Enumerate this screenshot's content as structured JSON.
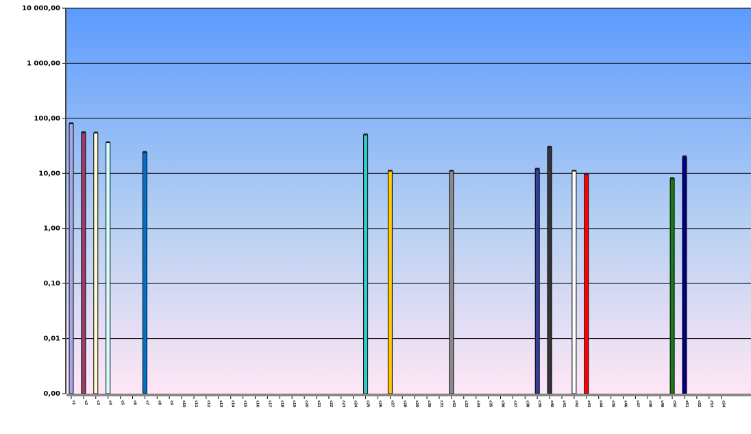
{
  "chart_data": {
    "type": "bar",
    "scale": "log",
    "grid": true,
    "legend": "none",
    "title": "",
    "xlabel": "",
    "ylabel": "",
    "ylim": [
      0.001,
      10000
    ],
    "yticks": [
      0.001,
      0.01,
      0.1,
      1,
      10,
      100,
      1000,
      10000
    ],
    "ytick_labels": [
      "0,00",
      "0,01",
      "0,10",
      "1,00",
      "10,00",
      "100,00",
      "1 000,00",
      "10 000,00"
    ],
    "background_gradient": [
      "#5c9bff",
      "#ffe6f5"
    ],
    "categories": [
      "c1",
      "c2",
      "c3",
      "c4",
      "c5",
      "c6",
      "c7",
      "c8",
      "c9",
      "c10",
      "c11",
      "c12",
      "c13",
      "c14",
      "c15",
      "c16",
      "c17",
      "c18",
      "c19",
      "c20",
      "c21",
      "c22",
      "c23",
      "c24",
      "c25",
      "c26",
      "c27",
      "c28",
      "c29",
      "c30",
      "c31",
      "c32",
      "c33",
      "c34",
      "c35",
      "c36",
      "c37",
      "c38",
      "c39",
      "c40",
      "c41",
      "c42",
      "c43",
      "c44",
      "c45",
      "c46",
      "c47",
      "c48",
      "c49",
      "c50",
      "c51",
      "c52",
      "c53",
      "c54"
    ],
    "values": [
      80,
      55,
      54,
      36,
      null,
      null,
      24,
      null,
      null,
      null,
      null,
      null,
      null,
      null,
      null,
      null,
      null,
      null,
      null,
      null,
      null,
      null,
      null,
      null,
      50,
      null,
      11,
      null,
      null,
      null,
      null,
      11,
      null,
      null,
      null,
      null,
      null,
      null,
      12,
      30,
      null,
      11,
      9.5,
      null,
      null,
      null,
      null,
      null,
      null,
      8,
      20,
      null,
      null,
      null
    ],
    "colors": [
      "#a7a7e8",
      "#9b3b6b",
      "#fffbd0",
      "#d5ffff",
      "#7a1a7a",
      "#ff8080",
      "#0070c8",
      "#c8c8ff",
      "#000080",
      "#ff00ff",
      "#ffff00",
      "#00ffff",
      "#800080",
      "#800000",
      "#008080",
      "#0000ff",
      "#00ccff",
      "#ccffff",
      "#ccffcc",
      "#ffff99",
      "#99ccff",
      "#ff99cc",
      "#cc99ff",
      "#ffcc99",
      "#33cccc",
      "#99cc00",
      "#ffcc00",
      "#ff9900",
      "#ff6600",
      "#666699",
      "#969696",
      "#8a8a8a",
      "#003366",
      "#339966",
      "#003300",
      "#333300",
      "#993300",
      "#993366",
      "#3340a0",
      "#333333",
      "#c0c0c0",
      "#ffffff",
      "#ff0000",
      "#00ff00",
      "#0000ff",
      "#ffff00",
      "#ff00ff",
      "#00ffff",
      "#800000",
      "#1a7a1a",
      "#000080",
      "#808000",
      "#800080",
      "#008080"
    ]
  }
}
